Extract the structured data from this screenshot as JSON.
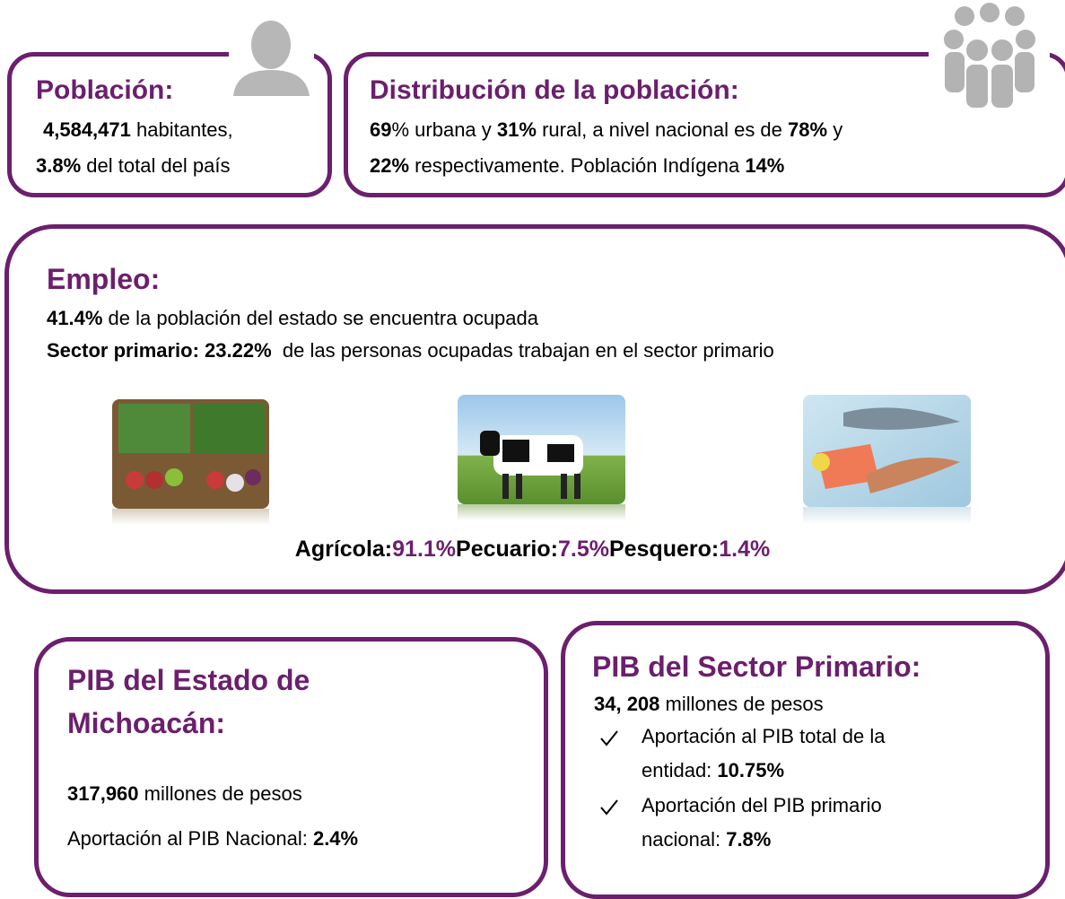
{
  "poblacion": {
    "title": "Población:",
    "line1": [
      "4,584,471",
      "habitantes,"
    ],
    "line2": [
      "3.8%",
      "del total del país"
    ]
  },
  "distribucion": {
    "title": "Distribución de la población:",
    "line1": [
      "69",
      "% urbana y",
      "31%",
      "rural, a nivel nacional es de",
      "78%",
      "y"
    ],
    "line2": [
      "22%",
      "respectivamente. Población Indígena",
      "14%"
    ]
  },
  "empleo": {
    "title": "Empleo:",
    "line1": [
      "41.4%",
      "de la población del estado se encuentra ocupada"
    ],
    "line2": [
      "Sector primario: 23.22%",
      "de las personas ocupadas trabajan en el sector primario"
    ],
    "sectores": [
      {
        "name": "Agrícola:",
        "value": "91.1%"
      },
      {
        "name": "Pecuario:",
        "value": "7.5%"
      },
      {
        "name": "Pesquero:",
        "value": "1.4%"
      }
    ]
  },
  "pib_estado": {
    "title": [
      "PIB del Estado de",
      "Michoacán:"
    ],
    "line1": [
      "317,960",
      "millones de pesos"
    ],
    "line2": [
      "Aportación al PIB Nacional:",
      "2.4%"
    ]
  },
  "pib_primario": {
    "title": "PIB del Sector Primario:",
    "line1": [
      "34, 208",
      "millones de pesos"
    ],
    "items": [
      {
        "lines": [
          "Aportación al PIB total de la",
          "entidad:"
        ],
        "value": "10.75%"
      },
      {
        "lines": [
          "Aportación del PIB primario",
          "nacional:"
        ],
        "value": "7.8%"
      }
    ]
  }
}
